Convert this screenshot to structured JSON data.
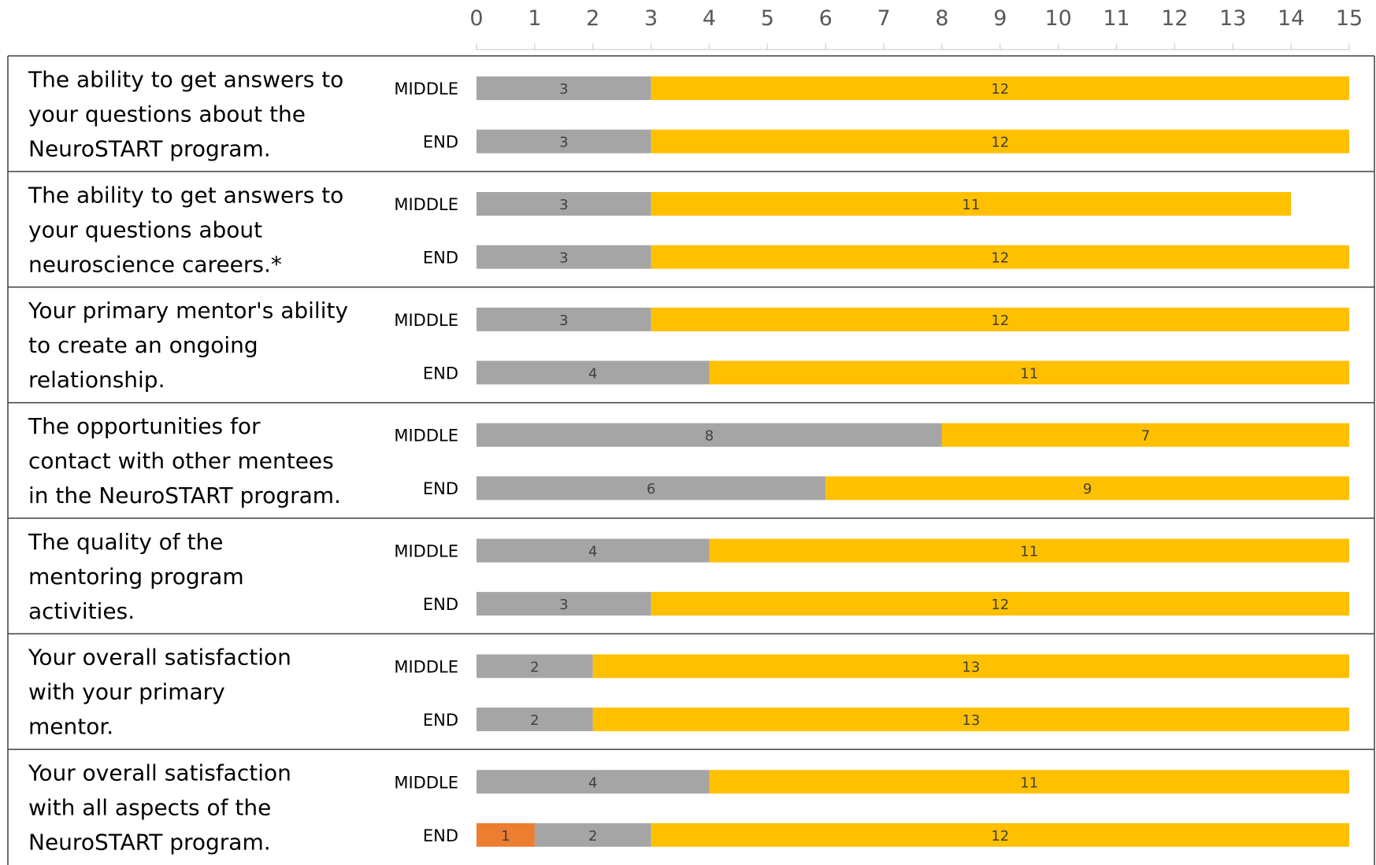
{
  "chart_data": {
    "type": "bar",
    "orientation": "horizontal",
    "stacked": true,
    "xlim": [
      0,
      15
    ],
    "x_ticks": [
      "0",
      "1",
      "2",
      "3",
      "4",
      "5",
      "6",
      "7",
      "8",
      "9",
      "10",
      "11",
      "12",
      "13",
      "14",
      "15"
    ],
    "axis_position": "top",
    "grid": false,
    "legend": "none",
    "colors": {
      "orange": "#ED7D31",
      "gray": "#A5A5A5",
      "gold": "#FFC000"
    },
    "questions": [
      {
        "label_lines": [
          "The ability to get answers to",
          "your questions about the",
          "NeuroSTART program."
        ],
        "bars": [
          {
            "phase": "MIDDLE",
            "segments": [
              {
                "value": 3,
                "color": "gray"
              },
              {
                "value": 12,
                "color": "gold"
              }
            ]
          },
          {
            "phase": "END",
            "segments": [
              {
                "value": 3,
                "color": "gray"
              },
              {
                "value": 12,
                "color": "gold"
              }
            ]
          }
        ]
      },
      {
        "label_lines": [
          "The ability to get answers to",
          "your questions about",
          "neuroscience careers.*"
        ],
        "bars": [
          {
            "phase": "MIDDLE",
            "segments": [
              {
                "value": 3,
                "color": "gray"
              },
              {
                "value": 11,
                "color": "gold"
              }
            ]
          },
          {
            "phase": "END",
            "segments": [
              {
                "value": 3,
                "color": "gray"
              },
              {
                "value": 12,
                "color": "gold"
              }
            ]
          }
        ]
      },
      {
        "label_lines": [
          "Your primary mentor's ability",
          "to create an ongoing",
          "relationship."
        ],
        "bars": [
          {
            "phase": "MIDDLE",
            "segments": [
              {
                "value": 3,
                "color": "gray"
              },
              {
                "value": 12,
                "color": "gold"
              }
            ]
          },
          {
            "phase": "END",
            "segments": [
              {
                "value": 4,
                "color": "gray"
              },
              {
                "value": 11,
                "color": "gold"
              }
            ]
          }
        ]
      },
      {
        "label_lines": [
          "The opportunities for",
          "contact with other mentees",
          "in the NeuroSTART program."
        ],
        "bars": [
          {
            "phase": "MIDDLE",
            "segments": [
              {
                "value": 8,
                "color": "gray"
              },
              {
                "value": 7,
                "color": "gold"
              }
            ]
          },
          {
            "phase": "END",
            "segments": [
              {
                "value": 6,
                "color": "gray"
              },
              {
                "value": 9,
                "color": "gold"
              }
            ]
          }
        ]
      },
      {
        "label_lines": [
          "The quality of the",
          "mentoring program",
          "activities."
        ],
        "bars": [
          {
            "phase": "MIDDLE",
            "segments": [
              {
                "value": 4,
                "color": "gray"
              },
              {
                "value": 11,
                "color": "gold"
              }
            ]
          },
          {
            "phase": "END",
            "segments": [
              {
                "value": 3,
                "color": "gray"
              },
              {
                "value": 12,
                "color": "gold"
              }
            ]
          }
        ]
      },
      {
        "label_lines": [
          "Your overall satisfaction",
          "with your primary",
          "mentor."
        ],
        "bars": [
          {
            "phase": "MIDDLE",
            "segments": [
              {
                "value": 2,
                "color": "gray"
              },
              {
                "value": 13,
                "color": "gold"
              }
            ]
          },
          {
            "phase": "END",
            "segments": [
              {
                "value": 2,
                "color": "gray"
              },
              {
                "value": 13,
                "color": "gold"
              }
            ]
          }
        ]
      },
      {
        "label_lines": [
          "Your overall satisfaction",
          "with all aspects of the",
          "NeuroSTART program."
        ],
        "bars": [
          {
            "phase": "MIDDLE",
            "segments": [
              {
                "value": 4,
                "color": "gray"
              },
              {
                "value": 11,
                "color": "gold"
              }
            ]
          },
          {
            "phase": "END",
            "segments": [
              {
                "value": 1,
                "color": "orange"
              },
              {
                "value": 2,
                "color": "gray"
              },
              {
                "value": 12,
                "color": "gold"
              }
            ]
          }
        ]
      }
    ]
  }
}
